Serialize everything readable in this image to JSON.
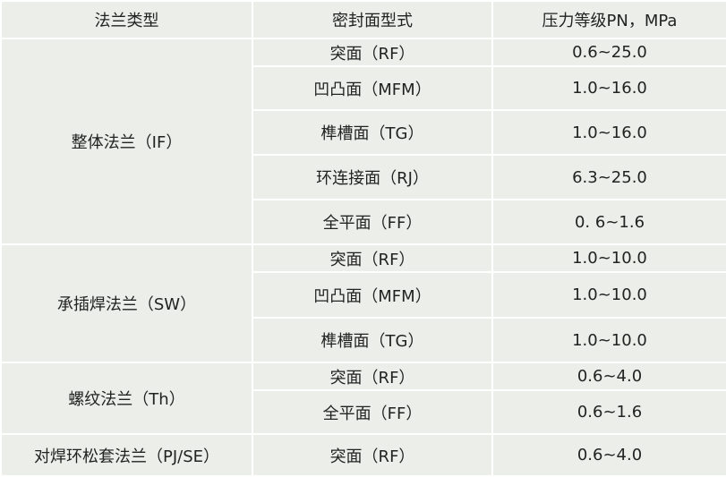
{
  "header": [
    "法兰类型",
    "密封面型式",
    "压力等级PN，MPa"
  ],
  "groups": [
    {
      "type": "整体法兰（IF）",
      "rows": [
        {
          "face": "突面（RF）",
          "pressure": "0.6~25.0"
        },
        {
          "face": "凹凸面（MFM）",
          "pressure": "1.0~16.0"
        },
        {
          "face": "榫槽面（TG）",
          "pressure": "1.0~16.0"
        },
        {
          "face": "环连接面（RJ）",
          "pressure": "6.3~25.0"
        },
        {
          "face": "全平面（FF）",
          "pressure": "0. 6~1.6"
        }
      ]
    },
    {
      "type": "承插焊法兰（SW）",
      "rows": [
        {
          "face": "突面（RF）",
          "pressure": "1.0~10.0"
        },
        {
          "face": "凹凸面（MFM）",
          "pressure": "1.0~10.0"
        },
        {
          "face": "榫槽面（TG）",
          "pressure": "1.0~10.0"
        }
      ]
    },
    {
      "type": "螺纹法兰（Th）",
      "rows": [
        {
          "face": "突面（RF）",
          "pressure": "0.6~4.0"
        },
        {
          "face": "全平面（FF）",
          "pressure": "0.6~1.6"
        }
      ]
    },
    {
      "type": "对焊环松套法兰（PJ/SE）",
      "rows": [
        {
          "face": "突面（RF）",
          "pressure": "0.6~4.0"
        }
      ]
    }
  ]
}
